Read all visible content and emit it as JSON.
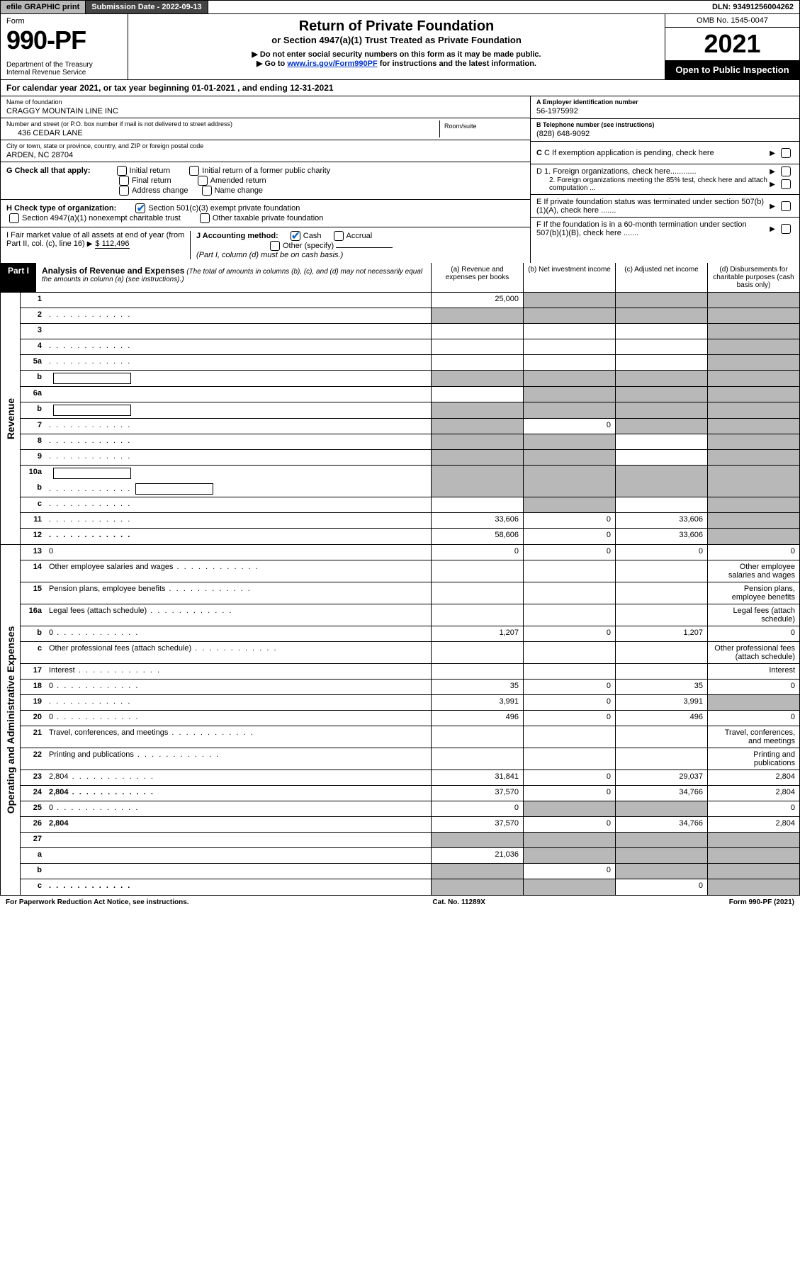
{
  "topbar": {
    "efile": "efile GRAPHIC print",
    "subdate_lbl": "Submission Date - ",
    "subdate": "2022-09-13",
    "dln_lbl": "DLN: ",
    "dln": "93491256004262"
  },
  "header": {
    "form_word": "Form",
    "form_no": "990-PF",
    "dept": "Department of the Treasury\nInternal Revenue Service",
    "title1": "Return of Private Foundation",
    "title2": "or Section 4947(a)(1) Trust Treated as Private Foundation",
    "note1": "▶ Do not enter social security numbers on this form as it may be made public.",
    "note2_pre": "▶ Go to ",
    "note2_link": "www.irs.gov/Form990PF",
    "note2_post": " for instructions and the latest information.",
    "omb": "OMB No. 1545-0047",
    "year": "2021",
    "open": "Open to Public Inspection"
  },
  "cal": "For calendar year 2021, or tax year beginning 01-01-2021                          , and ending 12-31-2021",
  "entity": {
    "name_lbl": "Name of foundation",
    "name": "CRAGGY MOUNTAIN LINE INC",
    "addr_lbl": "Number and street (or P.O. box number if mail is not delivered to street address)",
    "addr": "436 CEDAR LANE",
    "room_lbl": "Room/suite",
    "city_lbl": "City or town, state or province, country, and ZIP or foreign postal code",
    "city": "ARDEN, NC  28704",
    "ein_lbl": "A Employer identification number",
    "ein": "56-1975992",
    "tel_lbl": "B Telephone number (see instructions)",
    "tel": "(828) 648-9092",
    "c": "C If exemption application is pending, check here",
    "d1": "D 1. Foreign organizations, check here............",
    "d2": "2. Foreign organizations meeting the 85% test, check here and attach computation ...",
    "e": "E  If private foundation status was terminated under section 507(b)(1)(A), check here .......",
    "f": "F  If the foundation is in a 60-month termination under section 507(b)(1)(B), check here .......",
    "g_lbl": "G Check all that apply:",
    "g_opts": [
      "Initial return",
      "Initial return of a former public charity",
      "Final return",
      "Amended return",
      "Address change",
      "Name change"
    ],
    "h_lbl": "H Check type of organization:",
    "h_opts": [
      "Section 501(c)(3) exempt private foundation",
      "Section 4947(a)(1) nonexempt charitable trust",
      "Other taxable private foundation"
    ],
    "i_lbl": "I Fair market value of all assets at end of year (from Part II, col. (c), line 16)",
    "i_val": "$  112,496",
    "j_lbl": "J Accounting method:",
    "j_opts": [
      "Cash",
      "Accrual",
      "Other (specify)"
    ],
    "j_note": "(Part I, column (d) must be on cash basis.)"
  },
  "part1": {
    "label": "Part I",
    "title": "Analysis of Revenue and Expenses",
    "sub": "(The total of amounts in columns (b), (c), and (d) may not necessarily equal the amounts in column (a) (see instructions).)",
    "cols": {
      "a": "(a)   Revenue and expenses per books",
      "b": "(b)   Net investment income",
      "c": "(c)   Adjusted net income",
      "d": "(d)  Disbursements for charitable purposes (cash basis only)"
    }
  },
  "sidelabels": {
    "rev": "Revenue",
    "exp": "Operating and Administrative Expenses"
  },
  "rows": [
    {
      "n": "1",
      "d": "",
      "a": "25,000",
      "b": "",
      "c": "",
      "cg": [
        "",
        "g",
        "g",
        "g"
      ]
    },
    {
      "n": "2",
      "d": "",
      "dots": true,
      "a": "",
      "b": "",
      "c": "",
      "cg": [
        "g",
        "g",
        "g",
        "g"
      ]
    },
    {
      "n": "3",
      "d": "",
      "a": "",
      "b": "",
      "c": "",
      "cg": [
        "",
        "",
        "",
        "g"
      ]
    },
    {
      "n": "4",
      "d": "",
      "dots": true,
      "a": "",
      "b": "",
      "c": "",
      "cg": [
        "",
        "",
        "",
        "g"
      ]
    },
    {
      "n": "5a",
      "d": "",
      "dots": true,
      "a": "",
      "b": "",
      "c": "",
      "cg": [
        "",
        "",
        "",
        "g"
      ]
    },
    {
      "n": "b",
      "d": "",
      "inline": true,
      "a": "",
      "b": "",
      "c": "",
      "cg": [
        "g",
        "g",
        "g",
        "g"
      ]
    },
    {
      "n": "6a",
      "d": "",
      "a": "",
      "b": "",
      "c": "",
      "cg": [
        "",
        "g",
        "g",
        "g"
      ]
    },
    {
      "n": "b",
      "d": "",
      "inline": true,
      "a": "",
      "b": "",
      "c": "",
      "cg": [
        "g",
        "g",
        "g",
        "g"
      ]
    },
    {
      "n": "7",
      "d": "",
      "dots": true,
      "a": "",
      "b": "0",
      "c": "",
      "cg": [
        "g",
        "",
        "g",
        "g"
      ]
    },
    {
      "n": "8",
      "d": "",
      "dots": true,
      "a": "",
      "b": "",
      "c": "",
      "cg": [
        "g",
        "g",
        "",
        "g"
      ]
    },
    {
      "n": "9",
      "d": "",
      "dots": true,
      "a": "",
      "b": "",
      "c": "",
      "cg": [
        "g",
        "g",
        "",
        "g"
      ]
    },
    {
      "n": "10a",
      "d": "",
      "inline": true,
      "a": "",
      "b": "",
      "c": "",
      "cg": [
        "g",
        "g",
        "g",
        "g"
      ],
      "nb": true
    },
    {
      "n": "b",
      "d": "",
      "dots": true,
      "inline": true,
      "a": "",
      "b": "",
      "c": "",
      "cg": [
        "g",
        "g",
        "g",
        "g"
      ]
    },
    {
      "n": "c",
      "d": "",
      "dots": true,
      "a": "",
      "b": "",
      "c": "",
      "cg": [
        "",
        "g",
        "",
        "g"
      ]
    },
    {
      "n": "11",
      "d": "",
      "dots": true,
      "a": "33,606",
      "b": "0",
      "c": "33,606",
      "cg": [
        "",
        "",
        "",
        "g"
      ]
    },
    {
      "n": "12",
      "d": "",
      "dots": true,
      "bold": true,
      "a": "58,606",
      "b": "0",
      "c": "33,606",
      "cg": [
        "",
        "",
        "",
        "g"
      ]
    }
  ],
  "exp_rows": [
    {
      "n": "13",
      "d": "0",
      "a": "0",
      "b": "0",
      "c": "0"
    },
    {
      "n": "14",
      "d": "Other employee salaries and wages",
      "dots": true
    },
    {
      "n": "15",
      "d": "Pension plans, employee benefits",
      "dots": true
    },
    {
      "n": "16a",
      "d": "Legal fees (attach schedule)",
      "dots": true
    },
    {
      "n": "b",
      "d": "0",
      "dots": true,
      "a": "1,207",
      "b": "0",
      "c": "1,207"
    },
    {
      "n": "c",
      "d": "Other professional fees (attach schedule)",
      "dots": true
    },
    {
      "n": "17",
      "d": "Interest",
      "dots": true
    },
    {
      "n": "18",
      "d": "0",
      "dots": true,
      "a": "35",
      "b": "0",
      "c": "35"
    },
    {
      "n": "19",
      "d": "",
      "dots": true,
      "a": "3,991",
      "b": "0",
      "c": "3,991",
      "cg": [
        "",
        "",
        "",
        "g"
      ]
    },
    {
      "n": "20",
      "d": "0",
      "dots": true,
      "a": "496",
      "b": "0",
      "c": "496"
    },
    {
      "n": "21",
      "d": "Travel, conferences, and meetings",
      "dots": true
    },
    {
      "n": "22",
      "d": "Printing and publications",
      "dots": true
    },
    {
      "n": "23",
      "d": "2,804",
      "dots": true,
      "a": "31,841",
      "b": "0",
      "c": "29,037"
    },
    {
      "n": "24",
      "d": "2,804",
      "dots": true,
      "bold": true,
      "a": "37,570",
      "b": "0",
      "c": "34,766"
    },
    {
      "n": "25",
      "d": "0",
      "dots": true,
      "a": "0",
      "b": "",
      "c": "",
      "cg": [
        "",
        "g",
        "g",
        ""
      ]
    },
    {
      "n": "26",
      "d": "2,804",
      "bold": true,
      "a": "37,570",
      "b": "0",
      "c": "34,766"
    },
    {
      "n": "27",
      "d": "",
      "a": "",
      "b": "",
      "c": "",
      "cg": [
        "g",
        "g",
        "g",
        "g"
      ]
    },
    {
      "n": "a",
      "d": "",
      "bold": true,
      "a": "21,036",
      "b": "",
      "c": "",
      "cg": [
        "",
        "g",
        "g",
        "g"
      ]
    },
    {
      "n": "b",
      "d": "",
      "bold": true,
      "a": "",
      "b": "0",
      "c": "",
      "cg": [
        "g",
        "",
        "g",
        "g"
      ]
    },
    {
      "n": "c",
      "d": "",
      "dots": true,
      "bold": true,
      "a": "",
      "b": "",
      "c": "0",
      "cg": [
        "g",
        "g",
        "",
        "g"
      ]
    }
  ],
  "footer": {
    "l": "For Paperwork Reduction Act Notice, see instructions.",
    "c": "Cat. No. 11289X",
    "r": "Form 990-PF (2021)"
  },
  "colors": {
    "grey": "#b8b8b8",
    "darkbar": "#444444",
    "link": "#0033cc",
    "check": "#0066cc"
  }
}
